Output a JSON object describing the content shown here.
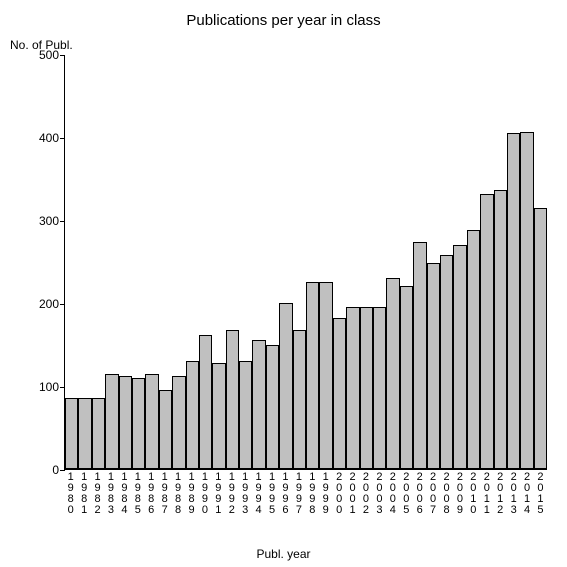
{
  "chart": {
    "type": "bar",
    "title": "Publications per year in class",
    "title_fontsize": 15,
    "ylabel": "No. of Publ.",
    "xlabel": "Publ. year",
    "label_fontsize": 12,
    "background_color": "#ffffff",
    "bar_fill": "#c0c0c0",
    "bar_border": "#000000",
    "axis_color": "#000000",
    "ylim": [
      0,
      500
    ],
    "ytick_step": 100,
    "yticks": [
      0,
      100,
      200,
      300,
      400,
      500
    ],
    "categories": [
      "1980",
      "1981",
      "1982",
      "1983",
      "1984",
      "1985",
      "1986",
      "1987",
      "1988",
      "1989",
      "1990",
      "1991",
      "1992",
      "1993",
      "1994",
      "1995",
      "1996",
      "1997",
      "1998",
      "1999",
      "2000",
      "2001",
      "2002",
      "2003",
      "2004",
      "2005",
      "2006",
      "2007",
      "2008",
      "2009",
      "2010",
      "2011",
      "2012",
      "2013",
      "2014",
      "2015"
    ],
    "values": [
      85,
      85,
      85,
      115,
      112,
      110,
      115,
      95,
      112,
      130,
      162,
      128,
      168,
      130,
      155,
      150,
      200,
      168,
      225,
      225,
      182,
      195,
      195,
      195,
      230,
      220,
      273,
      248,
      258,
      270,
      288,
      331,
      336,
      405,
      406,
      315
    ],
    "tick_fontsize": 12,
    "xtick_fontsize": 11
  }
}
